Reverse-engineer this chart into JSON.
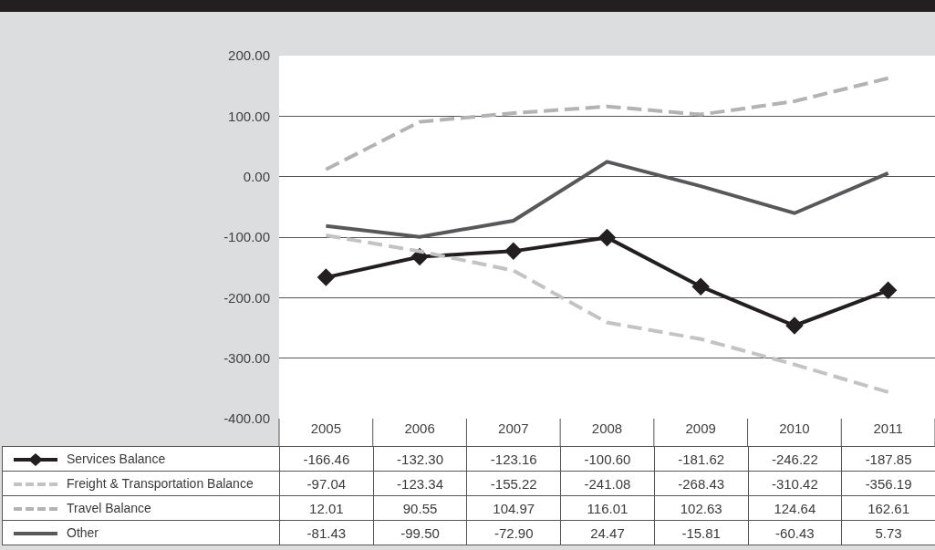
{
  "chart_data": {
    "type": "line",
    "categories": [
      "2005",
      "2006",
      "2007",
      "2008",
      "2009",
      "2010",
      "2011"
    ],
    "series": [
      {
        "name": "Services Balance",
        "color": "#231f20",
        "marker": "diamond",
        "values": [
          -166.46,
          -132.3,
          -123.16,
          -100.6,
          -181.62,
          -246.22,
          -187.85
        ],
        "value_labels": [
          "-166.46",
          "-132.30",
          "-123.16",
          "-100.60",
          "-181.62",
          "-246.22",
          "-187.85"
        ]
      },
      {
        "name": "Freight & Transportation Balance",
        "color": "#c3c3c5",
        "line_style": "dashed",
        "values": [
          -97.04,
          -123.34,
          -155.22,
          -241.08,
          -268.43,
          -310.42,
          -356.19
        ],
        "value_labels": [
          "-97.04",
          "-123.34",
          "-155.22",
          "-241.08",
          "-268.43",
          "-310.42",
          "-356.19"
        ]
      },
      {
        "name": "Travel Balance",
        "color": "#b3b3b5",
        "line_style": "dashed",
        "values": [
          12.01,
          90.55,
          104.97,
          116.01,
          102.63,
          124.64,
          162.61
        ],
        "value_labels": [
          "12.01",
          "90.55",
          "104.97",
          "116.01",
          "102.63",
          "124.64",
          "162.61"
        ]
      },
      {
        "name": "Other",
        "color": "#58585a",
        "values": [
          -81.43,
          -99.5,
          -72.9,
          24.47,
          -15.81,
          -60.43,
          5.73
        ],
        "value_labels": [
          "-81.43",
          "-99.50",
          "-72.90",
          "24.47",
          "-15.81",
          "-60.43",
          "5.73"
        ]
      }
    ],
    "ylim": [
      -400,
      200
    ],
    "yticks": [
      {
        "value": -400,
        "label": "-400.00"
      },
      {
        "value": -300,
        "label": "-300.00"
      },
      {
        "value": -200,
        "label": "-200.00"
      },
      {
        "value": -100,
        "label": "-100.00"
      },
      {
        "value": 0,
        "label": "0.00"
      },
      {
        "value": 100,
        "label": "100.00"
      },
      {
        "value": 200,
        "label": "200.00"
      }
    ],
    "grid": "y",
    "legend": "bottom"
  }
}
